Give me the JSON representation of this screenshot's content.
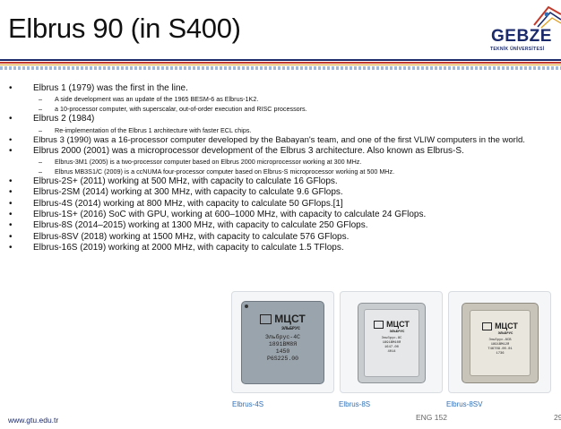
{
  "slide": {
    "title": "Elbrus 90 (in S400)",
    "logo": {
      "name": "GEBZE",
      "subtitle": "TEKNİK ÜNİVERSİTESİ"
    },
    "bullets": [
      {
        "level": 1,
        "text": "Elbrus 1 (1979) was the first in the line."
      },
      {
        "level": 2,
        "text": "A side development was an update of the 1965 BESM-6 as Elbrus-1K2."
      },
      {
        "level": 2,
        "text": "a 10-processor computer, with superscalar, out-of-order execution and RISC processors."
      },
      {
        "level": 1,
        "text": "Elbrus 2 (1984)"
      },
      {
        "level": 2,
        "text": "Re-implementation of the Elbrus 1 architecture with faster ECL chips."
      },
      {
        "level": 1,
        "text": "Elbrus 3 (1990) was a 16-processor computer developed by the Babayan's team, and one of the first VLIW computers in the world."
      },
      {
        "level": 1,
        "text": "Elbrus 2000 (2001) was a microprocessor development of the Elbrus 3 architecture. Also known as Elbrus-S."
      },
      {
        "level": 2,
        "text": "Elbrus-3M1 (2005) is a two-processor computer based on Elbrus 2000 microprocessor working at 300 MHz."
      },
      {
        "level": 2,
        "text": "Elbrus MB3S1/C (2009) is a ccNUMA four-processor computer based on Elbrus-S microprocessor working at 500 MHz."
      },
      {
        "level": 1,
        "text": "Elbrus-2S+ (2011) working at 500 MHz, with capacity to calculate 16 GFlops."
      },
      {
        "level": 1,
        "text": "Elbrus-2SM (2014) working at 300 MHz, with capacity to calculate 9.6 GFlops."
      },
      {
        "level": 1,
        "text": "Elbrus-4S (2014) working at 800 MHz, with capacity to calculate 50 GFlops.[1]"
      },
      {
        "level": 1,
        "text": "Elbrus-1S+ (2016) SoC with GPU, working at 600–1000 MHz, with capacity to calculate 24 GFlops."
      },
      {
        "level": 1,
        "text": "Elbrus-8S (2014–2015) working at 1300 MHz, with capacity to calculate 250 GFlops."
      },
      {
        "level": 1,
        "text": "Elbrus-8SV (2018) working at 1500 MHz, with capacity to calculate 576 GFlops."
      },
      {
        "level": 1,
        "text": "Elbrus-16S (2019) working at 2000 MHz, with capacity to calculate 1.5 TFlops."
      }
    ],
    "images": [
      {
        "caption": "Elbrus-4S",
        "brand": "МЦСТ",
        "sub": "ЭЛЬБРУС",
        "lines": [
          "Эльбрус-4С",
          "1891ВМ8Я",
          "1450",
          "Р6S225.00"
        ]
      },
      {
        "caption": "Elbrus-8S",
        "brand": "МЦСТ",
        "sub": "ЭЛЬБРУС",
        "lines": [
          "Эльбрус-8С",
          "1891ВМ10Я",
          "1647.00",
          "4014"
        ]
      },
      {
        "caption": "Elbrus-8SV",
        "brand": "МЦСТ",
        "sub": "ЭЛЬБРУС",
        "lines": [
          "Эльбрус-8СВ",
          "1891ВМ12Я",
          "Т46709.00.01",
          "1736"
        ]
      }
    ],
    "footer": {
      "url": "www.gtu.edu.tr",
      "course": "ENG 152",
      "page": "29"
    }
  }
}
